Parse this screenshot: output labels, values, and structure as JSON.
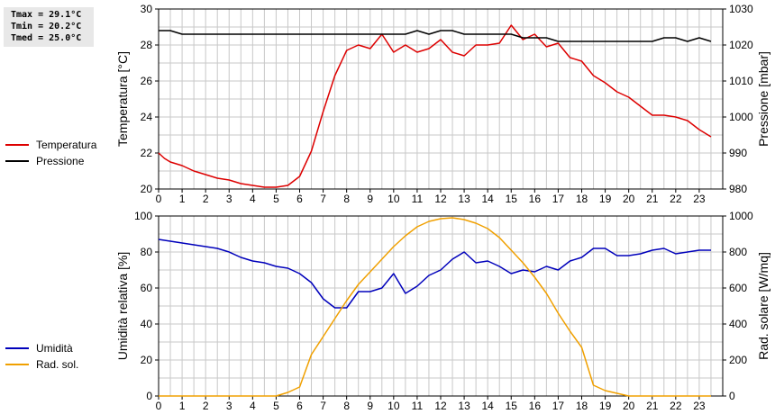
{
  "stats": {
    "tmax": "Tmax = 29.1°C",
    "tmin": "Tmin = 20.2°C",
    "tmed": "Tmed = 25.0°C"
  },
  "colors": {
    "temperature": "#dd0000",
    "pressure": "#000000",
    "humidity": "#0000bb",
    "radiation": "#f0a000",
    "grid": "#c8c8c8"
  },
  "chart_data": [
    {
      "type": "line",
      "xlim": [
        0,
        24
      ],
      "x_ticks": [
        0,
        1,
        2,
        3,
        4,
        5,
        6,
        7,
        8,
        9,
        10,
        11,
        12,
        13,
        14,
        15,
        16,
        17,
        18,
        19,
        20,
        21,
        22,
        23
      ],
      "grid": true,
      "legend_placement": "left",
      "left_axis": {
        "label": "Temperatura [°C]",
        "ylim": [
          20,
          30
        ],
        "ticks": [
          20,
          22,
          24,
          26,
          28,
          30
        ]
      },
      "right_axis": {
        "label": "Pressione [mbar]",
        "ylim": [
          980,
          1030
        ],
        "ticks": [
          980,
          990,
          1000,
          1010,
          1020,
          1030
        ]
      },
      "series": [
        {
          "name": "Temperatura",
          "axis": "left",
          "color": "#dd0000",
          "x": [
            0,
            0.25,
            0.5,
            1,
            1.5,
            2,
            2.5,
            3,
            3.5,
            4,
            4.5,
            5,
            5.5,
            6,
            6.5,
            7,
            7.5,
            8,
            8.5,
            9,
            9.5,
            10,
            10.5,
            11,
            11.5,
            12,
            12.5,
            13,
            13.5,
            14,
            14.5,
            15,
            15.5,
            16,
            16.5,
            17,
            17.5,
            18,
            18.5,
            19,
            19.5,
            20,
            20.5,
            21,
            21.5,
            22,
            22.5,
            23,
            23.5
          ],
          "y": [
            22.0,
            21.7,
            21.5,
            21.3,
            21.0,
            20.8,
            20.6,
            20.5,
            20.3,
            20.2,
            20.1,
            20.1,
            20.2,
            20.7,
            22.1,
            24.3,
            26.3,
            27.7,
            28.0,
            27.8,
            28.6,
            27.6,
            28.0,
            27.6,
            27.8,
            28.3,
            27.6,
            27.4,
            28.0,
            28.0,
            28.1,
            29.1,
            28.3,
            28.6,
            27.9,
            28.1,
            27.3,
            27.1,
            26.3,
            25.9,
            25.4,
            25.1,
            24.6,
            24.1,
            24.1,
            24.0,
            23.8,
            23.3,
            22.9
          ]
        },
        {
          "name": "Pressione",
          "axis": "right",
          "color": "#000000",
          "x": [
            0,
            0.5,
            1,
            1.5,
            2,
            3,
            4,
            5,
            6,
            7,
            8,
            9,
            10,
            10.5,
            11,
            11.5,
            12,
            12.5,
            13,
            14,
            15,
            15.5,
            16,
            16.5,
            17,
            17.5,
            18,
            19,
            20,
            21,
            21.5,
            22,
            22.5,
            23,
            23.5
          ],
          "y": [
            1024,
            1024,
            1023,
            1023,
            1023,
            1023,
            1023,
            1023,
            1023,
            1023,
            1023,
            1023,
            1023,
            1023,
            1024,
            1023,
            1024,
            1024,
            1023,
            1023,
            1023,
            1022,
            1022,
            1022,
            1021,
            1021,
            1021,
            1021,
            1021,
            1021,
            1022,
            1022,
            1021,
            1022,
            1021
          ]
        }
      ]
    },
    {
      "type": "line",
      "xlim": [
        0,
        24
      ],
      "x_ticks": [
        0,
        1,
        2,
        3,
        4,
        5,
        6,
        7,
        8,
        9,
        10,
        11,
        12,
        13,
        14,
        15,
        16,
        17,
        18,
        19,
        20,
        21,
        22,
        23
      ],
      "grid": true,
      "legend_placement": "left",
      "left_axis": {
        "label": "Umidità relativa [%]",
        "ylim": [
          0,
          100
        ],
        "ticks": [
          0,
          20,
          40,
          60,
          80,
          100
        ]
      },
      "right_axis": {
        "label": "Rad. solare [W/mq]",
        "ylim": [
          0,
          1000
        ],
        "ticks": [
          0,
          200,
          400,
          600,
          800,
          1000
        ]
      },
      "series": [
        {
          "name": "Umidità",
          "axis": "left",
          "color": "#0000bb",
          "x": [
            0,
            0.5,
            1,
            1.5,
            2,
            2.5,
            3,
            3.5,
            4,
            4.5,
            5,
            5.5,
            6,
            6.5,
            7,
            7.5,
            8,
            8.5,
            9,
            9.5,
            10,
            10.5,
            11,
            11.5,
            12,
            12.5,
            13,
            13.5,
            14,
            14.5,
            15,
            15.5,
            16,
            16.5,
            17,
            17.5,
            18,
            18.5,
            19,
            19.5,
            20,
            20.5,
            21,
            21.5,
            22,
            22.5,
            23,
            23.5
          ],
          "y": [
            87,
            86,
            85,
            84,
            83,
            82,
            80,
            77,
            75,
            74,
            72,
            71,
            68,
            63,
            54,
            49,
            49,
            58,
            58,
            60,
            68,
            57,
            61,
            67,
            70,
            76,
            80,
            74,
            75,
            72,
            68,
            70,
            69,
            72,
            70,
            75,
            77,
            82,
            82,
            78,
            78,
            79,
            81,
            82,
            79,
            80,
            81,
            81
          ]
        },
        {
          "name": "Rad. sol.",
          "axis": "right",
          "color": "#f0a000",
          "x": [
            0,
            1,
            2,
            3,
            4,
            5,
            5.5,
            6,
            6.5,
            7,
            7.5,
            8,
            8.5,
            9,
            9.5,
            10,
            10.5,
            11,
            11.5,
            12,
            12.5,
            13,
            13.5,
            14,
            14.5,
            15,
            15.5,
            16,
            16.5,
            17,
            17.5,
            18,
            18.5,
            19,
            20,
            21,
            22,
            23,
            23.5
          ],
          "y": [
            0,
            0,
            0,
            0,
            0,
            0,
            20,
            50,
            230,
            330,
            430,
            530,
            620,
            690,
            760,
            830,
            890,
            940,
            970,
            985,
            990,
            980,
            960,
            930,
            880,
            810,
            740,
            660,
            570,
            460,
            360,
            270,
            60,
            30,
            0,
            0,
            0,
            0,
            0
          ]
        }
      ]
    }
  ]
}
